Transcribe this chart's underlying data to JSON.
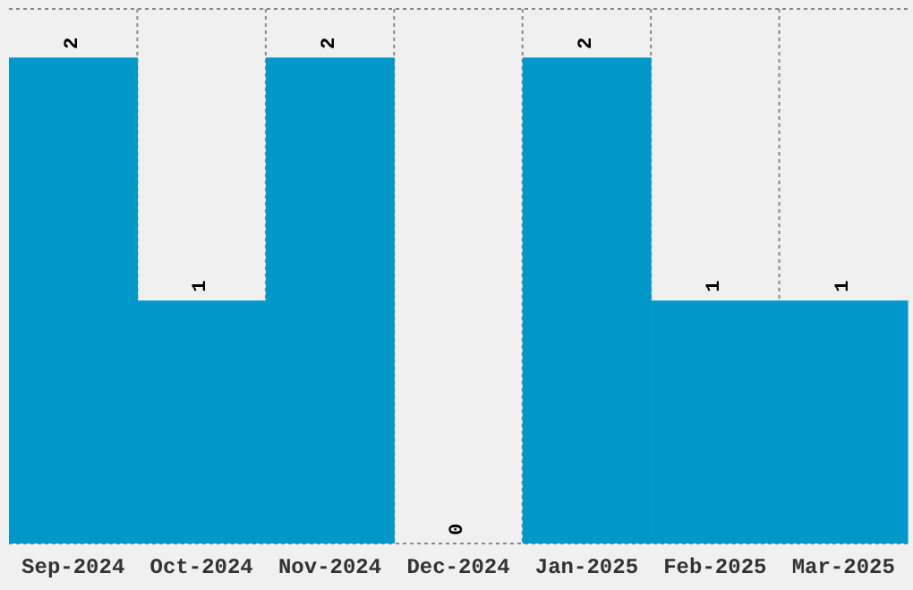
{
  "chart_data": {
    "type": "bar",
    "categories": [
      "Sep-2024",
      "Oct-2024",
      "Nov-2024",
      "Dec-2024",
      "Jan-2025",
      "Feb-2025",
      "Mar-2025"
    ],
    "values": [
      2,
      1,
      2,
      0,
      2,
      1,
      1
    ],
    "color": "#0098c8",
    "data_labels": true,
    "ylim": [
      0,
      2.2
    ],
    "grid": true,
    "tick_labels": "x"
  }
}
